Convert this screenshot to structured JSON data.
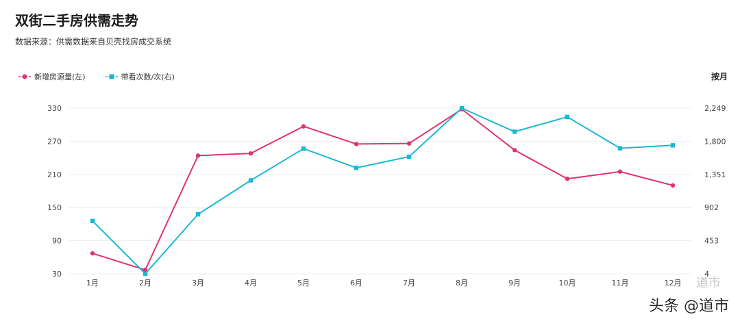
{
  "header": {
    "title": "双街二手房供需走势",
    "subtitle": "数据来源：供需数据来自贝壳找房成交系统",
    "period": "按月"
  },
  "watermark": {
    "text": "头条 @道市",
    "faint_text": "道市"
  },
  "colors": {
    "supply": "#e0336e",
    "viewings": "#1ab8d2",
    "grid": "#eeeeee",
    "tick": "#444444"
  },
  "chart_data": {
    "type": "line",
    "title": "双街二手房供需走势",
    "categories": [
      "1月",
      "2月",
      "3月",
      "4月",
      "5月",
      "6月",
      "7月",
      "8月",
      "9月",
      "10月",
      "11月",
      "12月"
    ],
    "left_axis": {
      "ylim": [
        30,
        330
      ],
      "ticks": [
        "30",
        "90",
        "150",
        "210",
        "270",
        "330"
      ]
    },
    "right_axis": {
      "ylim": [
        4,
        2249
      ],
      "ticks": [
        "4",
        "453",
        "902",
        "1,351",
        "1,800",
        "2,249"
      ]
    },
    "series": [
      {
        "name": "新增房源量(左)",
        "axis": "left",
        "marker": "circle",
        "values": [
          67,
          37,
          244,
          248,
          297,
          265,
          266,
          328,
          254,
          202,
          215,
          190
        ]
      },
      {
        "name": "带看次数/次(右)",
        "axis": "right",
        "marker": "square",
        "values": [
          720,
          4,
          810,
          1270,
          1700,
          1440,
          1590,
          2249,
          1930,
          2130,
          1705,
          1745
        ]
      }
    ]
  }
}
